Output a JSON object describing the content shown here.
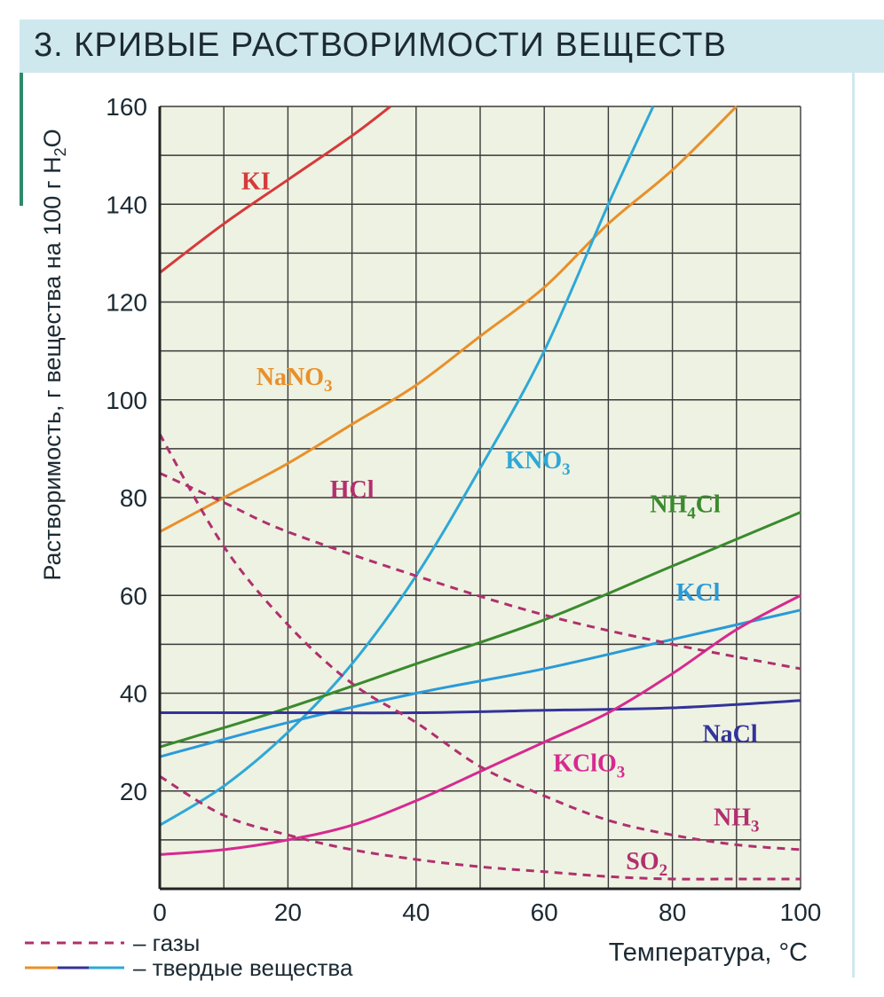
{
  "title": "3. КРИВЫЕ РАСТВОРИМОСТИ ВЕЩЕСТВ",
  "legend": {
    "gases": "– газы",
    "solids": "– твердые вещества"
  },
  "colors": {
    "plot_bg": "#eef2e2",
    "grid": "#3a3a3a",
    "KI": "#d63a3a",
    "NaNO3": "#e8902a",
    "KNO3": "#2ea8d6",
    "NH4Cl": "#3a8a2e",
    "KCl": "#2a9ad8",
    "NaCl": "#33339a",
    "KClO3": "#d62a90",
    "gas": "#b0306e"
  },
  "chart_data": {
    "type": "line",
    "xlabel": "Температура, °C",
    "ylabel": "Растворимость, г вещества на 100 г H2O",
    "xlim": [
      0,
      100
    ],
    "ylim": [
      0,
      160
    ],
    "xticks": [
      "0",
      "20",
      "40",
      "60",
      "80",
      "100"
    ],
    "yticks": [
      "20",
      "40",
      "60",
      "80",
      "100",
      "120",
      "140",
      "160"
    ],
    "grid": true,
    "series": [
      {
        "name": "KI",
        "kind": "solid",
        "color": "#d63a3a",
        "x": [
          0,
          10,
          20,
          30,
          36
        ],
        "y": [
          126,
          136,
          145,
          154,
          160
        ],
        "label": "KI",
        "label_pos": [
          15,
          143
        ]
      },
      {
        "name": "NaNO3",
        "kind": "solid",
        "color": "#e8902a",
        "x": [
          0,
          10,
          20,
          30,
          40,
          50,
          60,
          70,
          80,
          90
        ],
        "y": [
          73,
          80,
          87,
          95,
          103,
          113,
          123,
          136,
          147,
          160
        ],
        "label": "NaNO3",
        "label_pos": [
          21,
          103
        ]
      },
      {
        "name": "KNO3",
        "kind": "solid",
        "color": "#2ea8d6",
        "x": [
          0,
          10,
          20,
          30,
          40,
          50,
          60,
          70,
          77
        ],
        "y": [
          13,
          21,
          32,
          46,
          64,
          86,
          110,
          140,
          160
        ],
        "label": "KNO3",
        "label_pos": [
          59,
          86
        ]
      },
      {
        "name": "NH4Cl",
        "kind": "solid",
        "color": "#3a8a2e",
        "x": [
          0,
          20,
          40,
          60,
          80,
          100
        ],
        "y": [
          29,
          37,
          46,
          55,
          66,
          77
        ],
        "label": "NH4Cl",
        "label_pos": [
          82,
          77
        ]
      },
      {
        "name": "KCl",
        "kind": "solid",
        "color": "#2a9ad8",
        "x": [
          0,
          20,
          40,
          60,
          80,
          100
        ],
        "y": [
          27,
          34,
          40,
          45,
          51,
          57
        ],
        "label": "KCl",
        "label_pos": [
          84,
          59
        ]
      },
      {
        "name": "NaCl",
        "kind": "solid",
        "color": "#33339a",
        "x": [
          0,
          20,
          40,
          60,
          80,
          100
        ],
        "y": [
          36,
          36,
          36,
          36.5,
          37,
          38.5
        ],
        "label": "NaCl",
        "label_pos": [
          89,
          30
        ]
      },
      {
        "name": "KClO3",
        "kind": "solid",
        "color": "#d62a90",
        "x": [
          0,
          10,
          20,
          30,
          40,
          50,
          60,
          70,
          80,
          90,
          100
        ],
        "y": [
          7,
          8,
          10,
          13,
          18,
          24,
          30,
          36,
          44,
          53,
          60
        ],
        "label": "KClO3",
        "label_pos": [
          67,
          24
        ]
      },
      {
        "name": "HCl",
        "kind": "gas",
        "color": "#b0306e",
        "x": [
          0,
          10,
          20,
          40,
          60,
          80,
          100
        ],
        "y": [
          85,
          79,
          73,
          64,
          56,
          50,
          45
        ],
        "label": "HCl",
        "label_pos": [
          30,
          80
        ]
      },
      {
        "name": "NH3",
        "kind": "gas",
        "color": "#b0306e",
        "x": [
          0,
          10,
          20,
          30,
          40,
          50,
          60,
          70,
          80,
          90,
          100
        ],
        "y": [
          93,
          70,
          54,
          42,
          34,
          25,
          19,
          14,
          11,
          9,
          8
        ],
        "label": "NH3",
        "label_pos": [
          90,
          13
        ]
      },
      {
        "name": "SO2",
        "kind": "gas",
        "color": "#b0306e",
        "x": [
          0,
          10,
          20,
          30,
          40,
          50,
          60,
          70,
          80,
          90,
          100
        ],
        "y": [
          23,
          15,
          11,
          8,
          6,
          4.5,
          3.5,
          2.5,
          2,
          2,
          2
        ],
        "label": "SO2",
        "label_pos": [
          76,
          4
        ]
      }
    ]
  }
}
